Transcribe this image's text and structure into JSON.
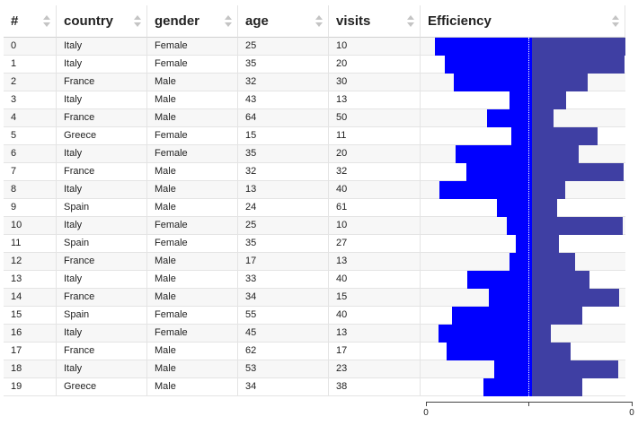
{
  "columns": [
    {
      "key": "index",
      "label": "#"
    },
    {
      "key": "country",
      "label": "country"
    },
    {
      "key": "gender",
      "label": "gender"
    },
    {
      "key": "age",
      "label": "age"
    },
    {
      "key": "visits",
      "label": "visits"
    },
    {
      "key": "efficiency",
      "label": "Efficiency"
    }
  ],
  "rows": [
    {
      "index": "0",
      "country": "Italy",
      "gender": "Female",
      "age": "25",
      "visits": "10"
    },
    {
      "index": "1",
      "country": "Italy",
      "gender": "Female",
      "age": "35",
      "visits": "20"
    },
    {
      "index": "2",
      "country": "France",
      "gender": "Male",
      "age": "32",
      "visits": "30"
    },
    {
      "index": "3",
      "country": "Italy",
      "gender": "Male",
      "age": "43",
      "visits": "13"
    },
    {
      "index": "4",
      "country": "France",
      "gender": "Male",
      "age": "64",
      "visits": "50"
    },
    {
      "index": "5",
      "country": "Greece",
      "gender": "Female",
      "age": "15",
      "visits": "11"
    },
    {
      "index": "6",
      "country": "Italy",
      "gender": "Female",
      "age": "35",
      "visits": "20"
    },
    {
      "index": "7",
      "country": "France",
      "gender": "Male",
      "age": "32",
      "visits": "32"
    },
    {
      "index": "8",
      "country": "Italy",
      "gender": "Male",
      "age": "13",
      "visits": "40"
    },
    {
      "index": "9",
      "country": "Spain",
      "gender": "Male",
      "age": "24",
      "visits": "61"
    },
    {
      "index": "10",
      "country": "Italy",
      "gender": "Female",
      "age": "25",
      "visits": "10"
    },
    {
      "index": "11",
      "country": "Spain",
      "gender": "Female",
      "age": "35",
      "visits": "27"
    },
    {
      "index": "12",
      "country": "France",
      "gender": "Male",
      "age": "17",
      "visits": "13"
    },
    {
      "index": "13",
      "country": "Italy",
      "gender": "Male",
      "age": "33",
      "visits": "40"
    },
    {
      "index": "14",
      "country": "France",
      "gender": "Male",
      "age": "34",
      "visits": "15"
    },
    {
      "index": "15",
      "country": "Spain",
      "gender": "Female",
      "age": "55",
      "visits": "40"
    },
    {
      "index": "16",
      "country": "Italy",
      "gender": "Female",
      "age": "45",
      "visits": "13"
    },
    {
      "index": "17",
      "country": "France",
      "gender": "Male",
      "age": "62",
      "visits": "17"
    },
    {
      "index": "18",
      "country": "Italy",
      "gender": "Male",
      "age": "53",
      "visits": "23"
    },
    {
      "index": "19",
      "country": "Greece",
      "gender": "Male",
      "age": "34",
      "visits": "38"
    }
  ],
  "chart_data": {
    "type": "bar",
    "orientation": "horizontal-diverging",
    "categories": [
      "0",
      "1",
      "2",
      "3",
      "4",
      "5",
      "6",
      "7",
      "8",
      "9",
      "10",
      "11",
      "12",
      "13",
      "14",
      "15",
      "16",
      "17",
      "18",
      "19"
    ],
    "series": [
      {
        "values": [
          0.95,
          0.85,
          0.76,
          0.22,
          0.44,
          0.2,
          0.75,
          0.64,
          0.9,
          0.34,
          0.25,
          0.16,
          0.22,
          0.63,
          0.42,
          0.78,
          0.91,
          0.83,
          0.37,
          0.47
        ]
      },
      {
        "values": [
          0.93,
          0.92,
          0.55,
          0.34,
          0.21,
          0.65,
          0.46,
          0.91,
          0.33,
          0.25,
          0.9,
          0.27,
          0.43,
          0.57,
          0.87,
          0.5,
          0.19,
          0.38,
          0.86,
          0.5
        ]
      }
    ],
    "axis_ticks": [
      "0",
      "",
      "0"
    ],
    "xlim": [
      -1,
      1
    ],
    "colors": {
      "negative": "#0000ff",
      "positive": "#3f3fa3"
    }
  }
}
